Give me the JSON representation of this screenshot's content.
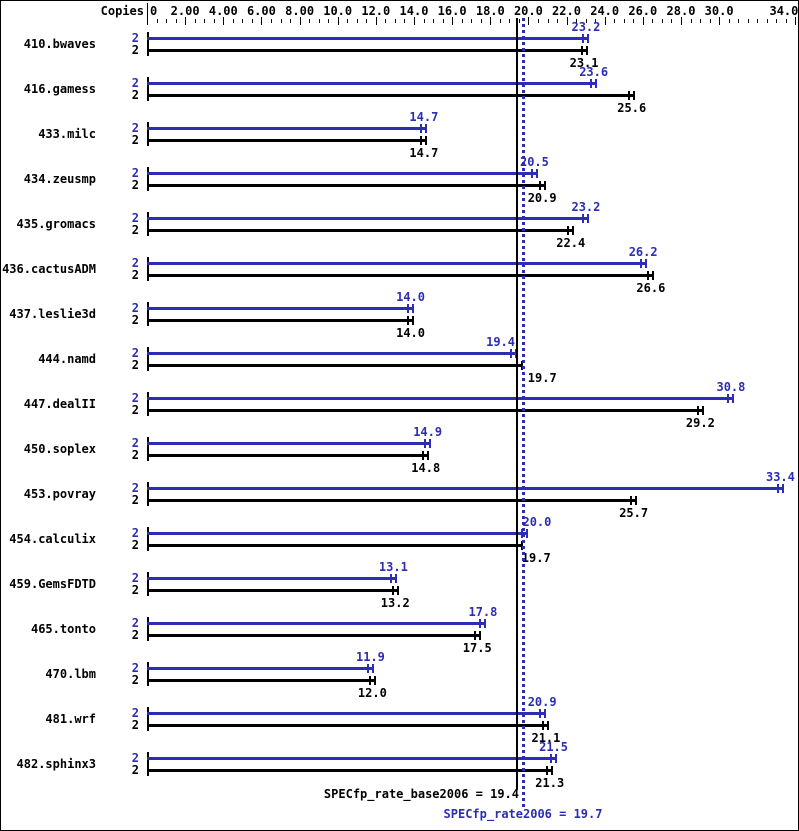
{
  "header": {
    "copies_label": "Copies"
  },
  "axis": {
    "min": 0,
    "max": 34,
    "minor_step": 0.5,
    "major_step": 2,
    "unlabeled_major": [
      32
    ],
    "tick_labels": [
      {
        "value": 0,
        "text": "0"
      },
      {
        "value": 2,
        "text": "2.00"
      },
      {
        "value": 4,
        "text": "4.00"
      },
      {
        "value": 6,
        "text": "6.00"
      },
      {
        "value": 8,
        "text": "8.00"
      },
      {
        "value": 10,
        "text": "10.0"
      },
      {
        "value": 12,
        "text": "12.0"
      },
      {
        "value": 14,
        "text": "14.0"
      },
      {
        "value": 16,
        "text": "16.0"
      },
      {
        "value": 18,
        "text": "18.0"
      },
      {
        "value": 20,
        "text": "20.0"
      },
      {
        "value": 22,
        "text": "22.0"
      },
      {
        "value": 24,
        "text": "24.0"
      },
      {
        "value": 26,
        "text": "26.0"
      },
      {
        "value": 28,
        "text": "28.0"
      },
      {
        "value": 30,
        "text": "30.0"
      },
      {
        "value": 34,
        "text": "34.0"
      }
    ]
  },
  "chart_data": {
    "type": "bar",
    "orientation": "horizontal",
    "title": "",
    "xlabel": "",
    "ylabel": "Copies",
    "xlim": [
      0,
      34
    ],
    "grid": false,
    "legend": "none",
    "categories": [
      "410.bwaves",
      "416.gamess",
      "433.milc",
      "434.zeusmp",
      "435.gromacs",
      "436.cactusADM",
      "437.leslie3d",
      "444.namd",
      "447.dealII",
      "450.soplex",
      "453.povray",
      "454.calculix",
      "459.GemsFDTD",
      "465.tonto",
      "470.lbm",
      "481.wrf",
      "482.sphinx3"
    ],
    "copies_labels": {
      "peak": "2",
      "base": "2"
    },
    "series": [
      {
        "name": "SPECfp_rate2006 (peak)",
        "color": "#2d2db4",
        "values": [
          23.2,
          23.6,
          14.7,
          20.5,
          23.2,
          26.2,
          14.0,
          19.4,
          30.8,
          14.9,
          33.4,
          20.0,
          13.1,
          17.8,
          11.9,
          20.9,
          21.5
        ]
      },
      {
        "name": "SPECfp_rate_base2006",
        "color": "#000000",
        "values": [
          23.1,
          25.6,
          14.7,
          20.9,
          22.4,
          26.6,
          14.0,
          19.7,
          29.2,
          14.8,
          25.7,
          19.7,
          13.2,
          17.5,
          12.0,
          21.1,
          21.3
        ]
      }
    ],
    "reference_lines": [
      {
        "name": "base-mean",
        "value": 19.4,
        "style": "solid",
        "color": "#000000",
        "label": "SPECfp_rate_base2006 = 19.4"
      },
      {
        "name": "peak-mean",
        "value": 19.7,
        "style": "dotted",
        "color": "#2d2db4",
        "label": "SPECfp_rate2006 = 19.7"
      }
    ]
  }
}
